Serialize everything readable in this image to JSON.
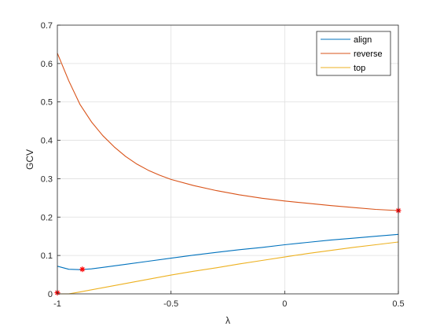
{
  "chart_data": {
    "type": "line",
    "title": "",
    "xlabel": "λ",
    "ylabel": "GCV",
    "xlim": [
      -1,
      0.5
    ],
    "ylim": [
      0,
      0.7
    ],
    "xticks": [
      -1,
      -0.5,
      0,
      0.5
    ],
    "xtick_labels": [
      "-1",
      "-0.5",
      "0",
      "0.5"
    ],
    "yticks": [
      0,
      0.1,
      0.2,
      0.3,
      0.4,
      0.5,
      0.6,
      0.7
    ],
    "ytick_labels": [
      "0",
      "0.1",
      "0.2",
      "0.3",
      "0.4",
      "0.5",
      "0.6",
      "0.7"
    ],
    "grid": true,
    "legend_position": "top-right",
    "series": [
      {
        "name": "align",
        "color": "#0072BD",
        "x": [
          -1,
          -0.95,
          -0.9,
          -0.85,
          -0.8,
          -0.7,
          -0.6,
          -0.5,
          -0.4,
          -0.3,
          -0.2,
          -0.1,
          0,
          0.1,
          0.2,
          0.3,
          0.4,
          0.5
        ],
        "y": [
          0.072,
          0.064,
          0.063,
          0.065,
          0.069,
          0.077,
          0.085,
          0.093,
          0.101,
          0.108,
          0.115,
          0.121,
          0.128,
          0.134,
          0.14,
          0.145,
          0.15,
          0.155
        ],
        "marker": {
          "x": -0.89,
          "y": 0.064
        }
      },
      {
        "name": "reverse",
        "color": "#D95319",
        "x": [
          -1,
          -0.95,
          -0.9,
          -0.85,
          -0.8,
          -0.75,
          -0.7,
          -0.65,
          -0.6,
          -0.55,
          -0.5,
          -0.4,
          -0.3,
          -0.2,
          -0.1,
          0,
          0.1,
          0.2,
          0.3,
          0.4,
          0.5
        ],
        "y": [
          0.627,
          0.555,
          0.493,
          0.448,
          0.412,
          0.383,
          0.358,
          0.338,
          0.322,
          0.309,
          0.298,
          0.282,
          0.269,
          0.258,
          0.249,
          0.242,
          0.236,
          0.23,
          0.225,
          0.22,
          0.217
        ],
        "marker": {
          "x": 0.5,
          "y": 0.217
        }
      },
      {
        "name": "top",
        "color": "#EDB120",
        "x": [
          -1,
          -0.95,
          -0.9,
          -0.8,
          -0.7,
          -0.6,
          -0.5,
          -0.4,
          -0.3,
          -0.2,
          -0.1,
          0,
          0.1,
          0.2,
          0.3,
          0.4,
          0.5
        ],
        "y": [
          0.0,
          0.0,
          0.005,
          0.016,
          0.027,
          0.038,
          0.049,
          0.059,
          0.068,
          0.078,
          0.087,
          0.096,
          0.105,
          0.113,
          0.121,
          0.128,
          0.135
        ],
        "marker": {
          "x": -1,
          "y": 0.003
        }
      }
    ],
    "marker_color": "#FF0000"
  }
}
